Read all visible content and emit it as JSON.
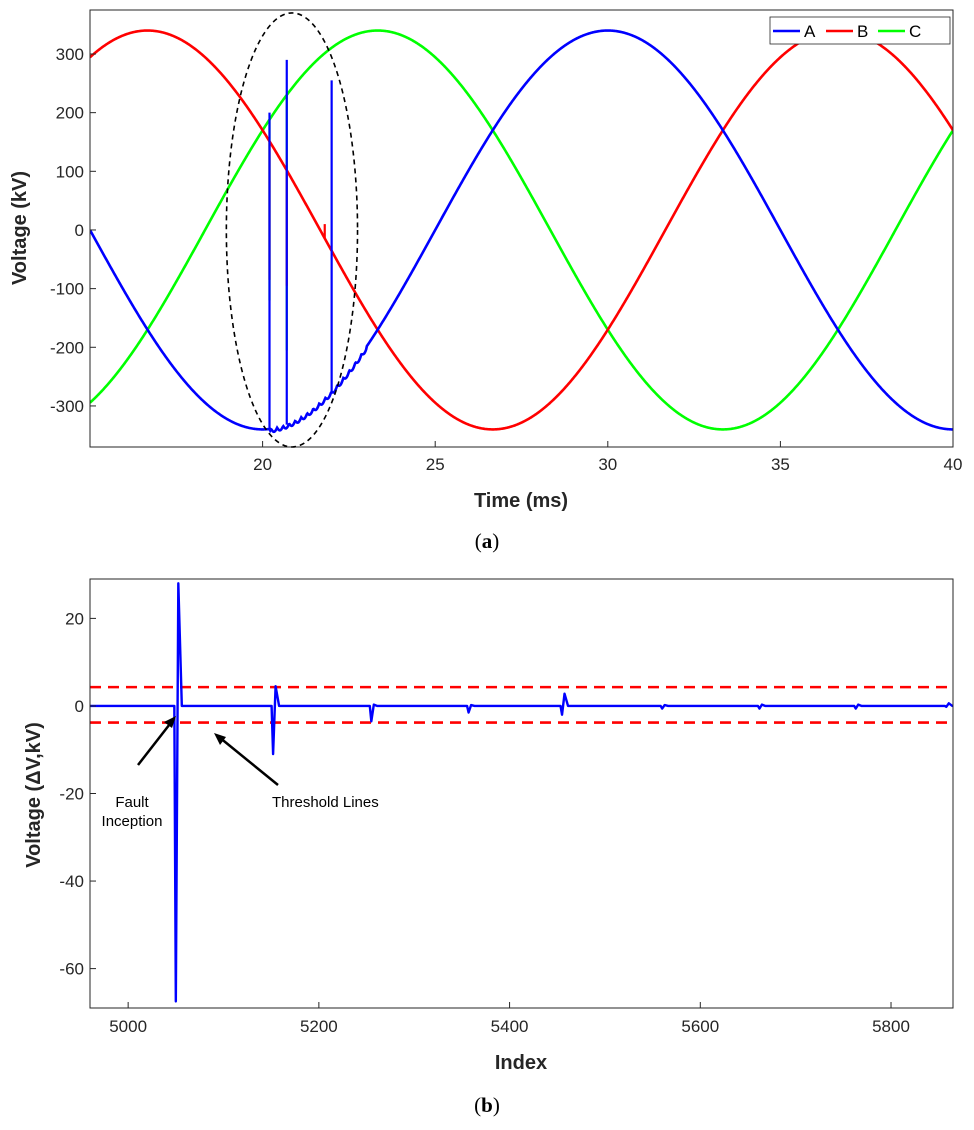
{
  "chart_data": [
    {
      "type": "line",
      "panel_label": "(a)",
      "panel_letter": "a",
      "xlabel": "Time (ms)",
      "ylabel": "Voltage (kV)",
      "xlim": [
        15,
        40
      ],
      "ylim": [
        -370,
        375
      ],
      "xticks": [
        20,
        25,
        30,
        35,
        40
      ],
      "yticks": [
        300,
        200,
        100,
        0,
        -100,
        -200,
        -300
      ],
      "legend": {
        "placement": "top-right",
        "entries": [
          "A",
          "B",
          "C"
        ]
      },
      "amplitude_kV": 340,
      "frequency_Hz": 50,
      "series": [
        {
          "name": "A",
          "color": "#0000ff",
          "phase_deg": -90,
          "disturbances": [
            {
              "t": 20.2,
              "dip_kV": 200
            },
            {
              "t": 20.7,
              "dip_kV": 290
            },
            {
              "t": 22.0,
              "dip_kV": 255
            }
          ]
        },
        {
          "name": "B",
          "color": "#ff0000",
          "phase_deg": 150,
          "disturbances": [
            {
              "t": 20.2,
              "spike_kV": -85
            },
            {
              "t": 20.7,
              "spike_kV": -95
            },
            {
              "t": 21.8,
              "spike_kV": 10
            }
          ]
        },
        {
          "name": "C",
          "color": "#00ff00",
          "phase_deg": 30,
          "disturbances": [
            {
              "t": 20.2,
              "spike_kV": -120
            },
            {
              "t": 20.7,
              "spike_kV": -205
            }
          ]
        }
      ],
      "annotation": {
        "shape": "dashed-ellipse",
        "center": [
          20.85,
          0
        ],
        "rx_ms": 1.9,
        "ry_kV": 370
      }
    },
    {
      "type": "line",
      "panel_label": "(b)",
      "panel_letter": "b",
      "xlabel": "Index",
      "ylabel": "Voltage (ΔV,kV)",
      "xlim": [
        4960,
        5865
      ],
      "ylim": [
        -69,
        29
      ],
      "xticks": [
        5000,
        5200,
        5400,
        5600,
        5800
      ],
      "yticks": [
        20,
        0,
        -20,
        -40,
        -60
      ],
      "thresholds": [
        4.3,
        -3.8
      ],
      "threshold_color": "#ff0000",
      "series": [
        {
          "name": "ΔV",
          "color": "#0000ff",
          "events": [
            {
              "index": 5050,
              "min": -67.5,
              "max": 28
            },
            {
              "index": 5152,
              "min": -11,
              "max": 4.5
            },
            {
              "index": 5255,
              "min": -3.5,
              "max": 0.3
            },
            {
              "index": 5357,
              "min": -1.5,
              "max": 0.2
            },
            {
              "index": 5455,
              "min": -2,
              "max": 2.8
            },
            {
              "index": 5560,
              "min": -0.6,
              "max": 0.2
            },
            {
              "index": 5662,
              "min": -0.6,
              "max": 0.3
            },
            {
              "index": 5763,
              "min": -0.6,
              "max": 0.3
            },
            {
              "index": 5858,
              "min": -0.2,
              "max": 0.6
            }
          ]
        }
      ],
      "annotations": [
        {
          "lines": [
            "Fault",
            "Inception"
          ],
          "target": [
            5050,
            0
          ]
        },
        {
          "lines": [
            "Threshold Lines"
          ],
          "target": [
            5085,
            -3.8
          ]
        }
      ]
    }
  ]
}
